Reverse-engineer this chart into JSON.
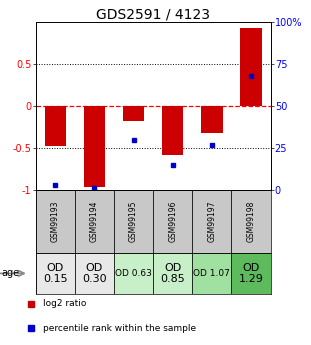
{
  "title": "GDS2591 / 4123",
  "samples": [
    "GSM99193",
    "GSM99194",
    "GSM99195",
    "GSM99196",
    "GSM99197",
    "GSM99198"
  ],
  "log2_ratios": [
    -0.48,
    -0.97,
    -0.18,
    -0.58,
    -0.32,
    0.93
  ],
  "percentile_ranks": [
    3,
    1,
    30,
    15,
    27,
    68
  ],
  "bar_color": "#cc0000",
  "dot_color": "#0000cc",
  "ylim": [
    -1.0,
    1.0
  ],
  "yticks_left": [
    -1,
    -0.5,
    0,
    0.5
  ],
  "ytick_labels_left": [
    "-1",
    "-0.5",
    "0",
    "0.5"
  ],
  "yticks_right": [
    0,
    25,
    50,
    75,
    100
  ],
  "ytick_labels_right": [
    "0",
    "25",
    "50",
    "75",
    "100%"
  ],
  "hlines": [
    0.5,
    0.0,
    -0.5
  ],
  "hline_colors": [
    "black",
    "red",
    "black"
  ],
  "hline_styles": [
    "dotted",
    "dashed",
    "dotted"
  ],
  "age_labels": [
    "OD\n0.15",
    "OD\n0.30",
    "OD 0.63",
    "OD\n0.85",
    "OD 1.07",
    "OD\n1.29"
  ],
  "age_bg_colors": [
    "#e8e8e8",
    "#e8e8e8",
    "#c8f0c8",
    "#c8f0c8",
    "#a0e0a0",
    "#5dbb5d"
  ],
  "age_font_sizes": [
    8,
    8,
    6.5,
    8,
    6.5,
    8
  ],
  "sample_bg_color": "#c8c8c8",
  "legend_log2": "log2 ratio",
  "legend_pct": "percentile rank within the sample",
  "title_fontsize": 10,
  "bar_width": 0.55
}
